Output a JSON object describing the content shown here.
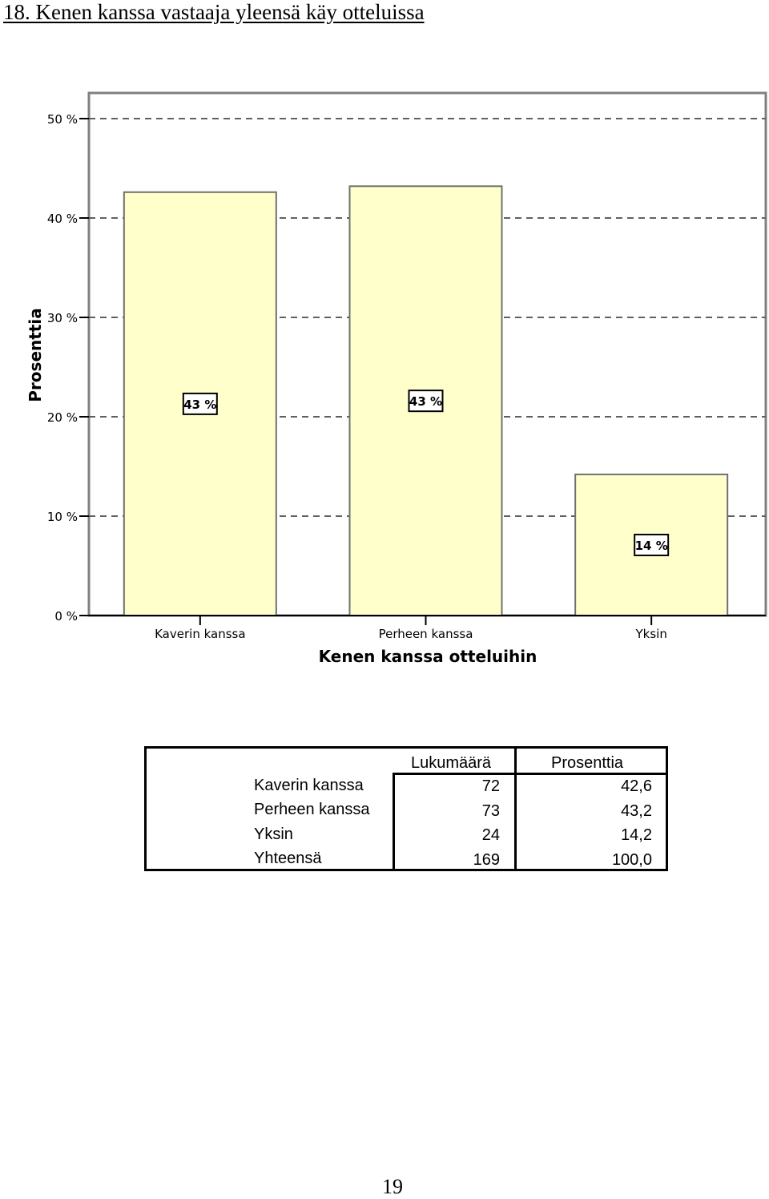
{
  "heading": "18. Kenen kanssa vastaaja yleensä käy otteluissa",
  "chart_data": {
    "type": "bar",
    "categories": [
      "Kaverin kanssa",
      "Perheen kanssa",
      "Yksin"
    ],
    "values": [
      42.6,
      43.2,
      14.2
    ],
    "data_labels": [
      "43 %",
      "43 %",
      "14 %"
    ],
    "title": "",
    "xlabel": "Kenen kanssa otteluihin",
    "ylabel": "Prosenttia",
    "ylim": [
      0,
      50
    ],
    "yticks": [
      "0 %",
      "10 %",
      "20 %",
      "30 %",
      "40 %",
      "50 %"
    ],
    "grid": true,
    "bar_color": "#ffffcc"
  },
  "table": {
    "headers": [
      "Lukumäärä",
      "Prosenttia"
    ],
    "rows": [
      {
        "label": "Kaverin kanssa",
        "count": "72",
        "pct": "42,6"
      },
      {
        "label": "Perheen kanssa",
        "count": "73",
        "pct": "43,2"
      },
      {
        "label": "Yksin",
        "count": "24",
        "pct": "14,2"
      },
      {
        "label": "Yhteensä",
        "count": "169",
        "pct": "100,0"
      }
    ]
  },
  "page_number": "19"
}
